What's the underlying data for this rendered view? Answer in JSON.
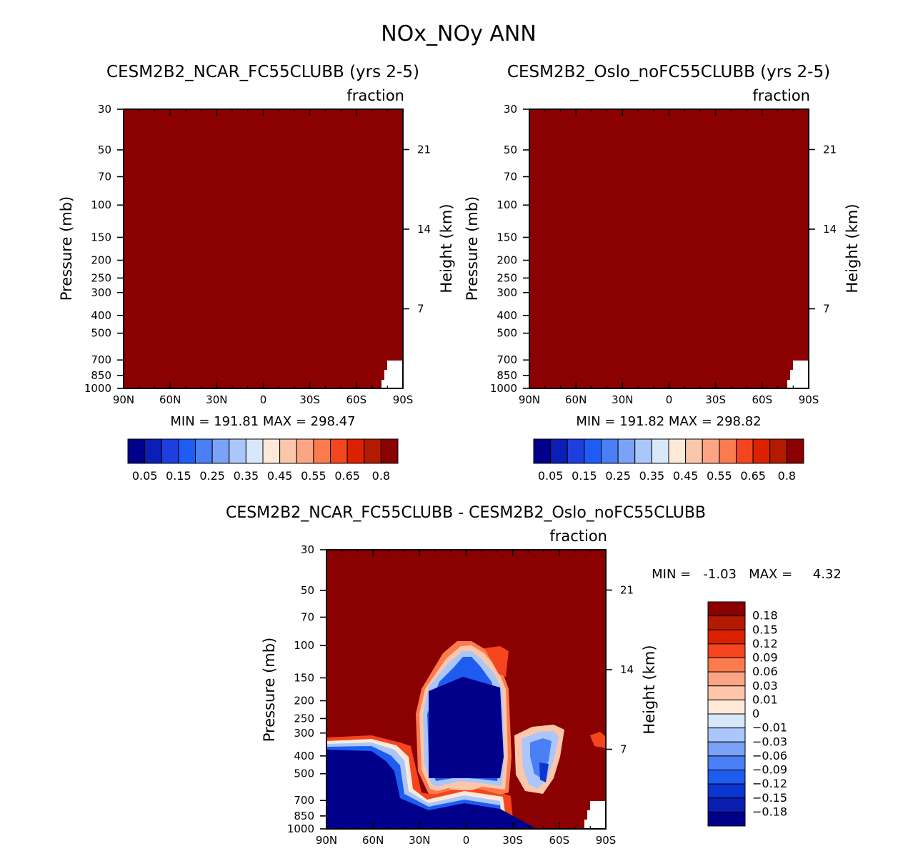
{
  "page_title": "NOx_NOy ANN",
  "colors": {
    "dark_red": "#8b0000",
    "dark_blue": "#00008b",
    "white": "#ffffff"
  },
  "panel_palette": [
    "#00008b",
    "#0b1fb8",
    "#1e3ee0",
    "#1f5cf5",
    "#4a7ff5",
    "#7aa3f7",
    "#aac6fb",
    "#d7e8fb",
    "#fee9d9",
    "#fcc6ab",
    "#fba584",
    "#fb7b4e",
    "#f4451e",
    "#dc2100",
    "#b41a00",
    "#8b0000"
  ],
  "diff_palette": [
    "#8b0000",
    "#b41a00",
    "#dc2100",
    "#f4451e",
    "#fb7b4e",
    "#fba584",
    "#fcc6ab",
    "#fee9d9",
    "#d7e8fb",
    "#aac6fb",
    "#7aa3f7",
    "#4a7ff5",
    "#1e5cf0",
    "#0b35d0",
    "#0a1fb0",
    "#00008b"
  ],
  "chart_data": [
    {
      "type": "heatmap",
      "title": "CESM2B2_NCAR_FC55CLUBB (yrs 2-5)",
      "units": "fraction",
      "ylabel": "Pressure (mb)",
      "ylabel_right": "Height (km)",
      "x_ticks": [
        "90N",
        "60N",
        "30N",
        "0",
        "30S",
        "60S",
        "90S"
      ],
      "y_ticks": [
        "30",
        "50",
        "70",
        "100",
        "150",
        "200",
        "250",
        "300",
        "400",
        "500",
        "700",
        "850",
        "1000"
      ],
      "y_values": [
        30,
        50,
        70,
        100,
        150,
        200,
        250,
        300,
        400,
        500,
        700,
        850,
        1000
      ],
      "height_ticks": [
        "21",
        "14",
        "7"
      ],
      "height_km": [
        21,
        14,
        7
      ],
      "xlim": [
        90,
        -90
      ],
      "ylim": [
        1000,
        30
      ],
      "stats_text": "MIN = 191.81   MAX = 298.47",
      "min": 191.81,
      "max": 298.47,
      "colorbar_labels": [
        "0.05",
        "0.15",
        "0.25",
        "0.35",
        "0.45",
        "0.55",
        "0.65",
        "0.8"
      ],
      "field_description": "values above 0.8 everywhere (dark red), missing near surface at high southern latitudes"
    },
    {
      "type": "heatmap",
      "title": "CESM2B2_Oslo_noFC55CLUBB (yrs 2-5)",
      "units": "fraction",
      "ylabel": "Pressure (mb)",
      "ylabel_right": "Height (km)",
      "x_ticks": [
        "90N",
        "60N",
        "30N",
        "0",
        "30S",
        "60S",
        "90S"
      ],
      "y_ticks": [
        "30",
        "50",
        "70",
        "100",
        "150",
        "200",
        "250",
        "300",
        "400",
        "500",
        "700",
        "850",
        "1000"
      ],
      "y_values": [
        30,
        50,
        70,
        100,
        150,
        200,
        250,
        300,
        400,
        500,
        700,
        850,
        1000
      ],
      "height_ticks": [
        "21",
        "14",
        "7"
      ],
      "height_km": [
        21,
        14,
        7
      ],
      "xlim": [
        90,
        -90
      ],
      "ylim": [
        1000,
        30
      ],
      "stats_text": "MIN = 191.82   MAX = 298.82",
      "min": 191.82,
      "max": 298.82,
      "colorbar_labels": [
        "0.05",
        "0.15",
        "0.25",
        "0.35",
        "0.45",
        "0.55",
        "0.65",
        "0.8"
      ],
      "field_description": "values above 0.8 everywhere (dark red), missing near surface at high southern latitudes"
    },
    {
      "type": "heatmap",
      "title": "CESM2B2_NCAR_FC55CLUBB - CESM2B2_Oslo_noFC55CLUBB",
      "units": "fraction",
      "ylabel": "Pressure (mb)",
      "ylabel_right": "Height (km)",
      "x_ticks": [
        "90N",
        "60N",
        "30N",
        "0",
        "30S",
        "60S",
        "90S"
      ],
      "y_ticks": [
        "30",
        "50",
        "70",
        "100",
        "150",
        "200",
        "250",
        "300",
        "400",
        "500",
        "700",
        "850",
        "1000"
      ],
      "y_values": [
        30,
        50,
        70,
        100,
        150,
        200,
        250,
        300,
        400,
        500,
        700,
        850,
        1000
      ],
      "height_ticks": [
        "21",
        "14",
        "7"
      ],
      "height_km": [
        21,
        14,
        7
      ],
      "xlim": [
        90,
        -90
      ],
      "ylim": [
        1000,
        30
      ],
      "stats_text": "MIN =   -1.03   MAX =     4.32",
      "min": -1.03,
      "max": 4.32,
      "colorbar_labels": [
        "0.18",
        "0.15",
        "0.12",
        "0.09",
        "0.06",
        "0.03",
        "0.01",
        "0",
        "-0.01",
        "-0.03",
        "-0.06",
        "-0.09",
        "-0.12",
        "-0.15",
        "-0.18"
      ],
      "colorbar_display": [
        "0.18",
        "0.15",
        "0.12",
        "0.09",
        "0.06",
        "0.03",
        "0.01",
        "0",
        "−0.01",
        "−0.03",
        "−0.06",
        "−0.09",
        "−0.12",
        "−0.15",
        "−0.18"
      ],
      "field_description": "positive (red) above ~100 mb and in subtropics; strongly negative (blue) in tropical upper troposphere 100-700 mb and near surface"
    }
  ]
}
